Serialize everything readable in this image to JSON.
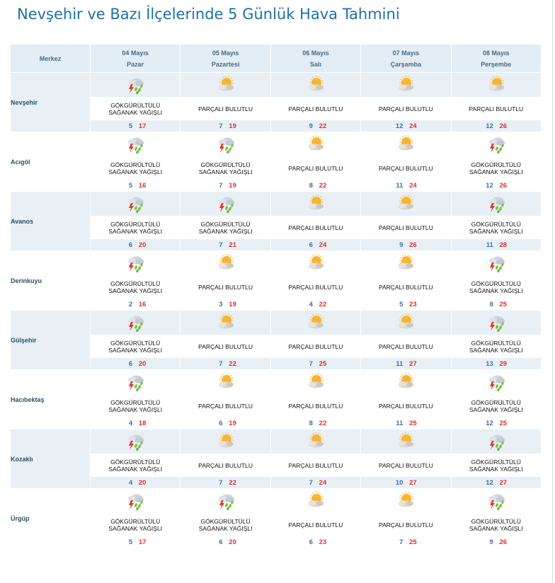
{
  "page_title": "Nevşehir ve Bazı İlçelerinde 5 Günlük Hava Tahmini",
  "header": {
    "merkez": "Merkez",
    "days": [
      {
        "date": "04 Mayıs",
        "weekday": "Pazar"
      },
      {
        "date": "05 Mayıs",
        "weekday": "Pazartesi"
      },
      {
        "date": "06 Mayıs",
        "weekday": "Salı"
      },
      {
        "date": "07 Mayıs",
        "weekday": "Çarşamba"
      },
      {
        "date": "08 Mayıs",
        "weekday": "Perşembe"
      }
    ]
  },
  "conditions": {
    "storm": {
      "line1": "GÖKGÜRÜLTÜLÜ",
      "line2": "SAĞANAK YAĞIŞLI",
      "icon": "thunderstorm-rain-icon"
    },
    "partly": {
      "line1": "PARÇALI BULUTLU",
      "line2": "",
      "icon": "partly-cloudy-icon"
    }
  },
  "colors": {
    "min_temp": "#3b6fb0",
    "max_temp": "#d8322e",
    "title": "#1f6fa8",
    "header_bg": "#e3edf5",
    "row_shade": "#e8f0f6"
  },
  "cities": [
    {
      "name": "Nevşehir",
      "days": [
        {
          "cond": "storm",
          "min": "5",
          "max": "17"
        },
        {
          "cond": "partly",
          "min": "7",
          "max": "19"
        },
        {
          "cond": "partly",
          "min": "9",
          "max": "22"
        },
        {
          "cond": "partly",
          "min": "12",
          "max": "24"
        },
        {
          "cond": "partly",
          "min": "12",
          "max": "26"
        }
      ]
    },
    {
      "name": "Acıgöl",
      "days": [
        {
          "cond": "storm",
          "min": "5",
          "max": "16"
        },
        {
          "cond": "storm",
          "min": "7",
          "max": "19"
        },
        {
          "cond": "partly",
          "min": "8",
          "max": "22"
        },
        {
          "cond": "partly",
          "min": "11",
          "max": "24"
        },
        {
          "cond": "storm",
          "min": "12",
          "max": "26"
        }
      ]
    },
    {
      "name": "Avanos",
      "days": [
        {
          "cond": "storm",
          "min": "6",
          "max": "20"
        },
        {
          "cond": "storm",
          "min": "7",
          "max": "21"
        },
        {
          "cond": "partly",
          "min": "6",
          "max": "24"
        },
        {
          "cond": "partly",
          "min": "9",
          "max": "26"
        },
        {
          "cond": "storm",
          "min": "11",
          "max": "28"
        }
      ]
    },
    {
      "name": "Derinkuyu",
      "days": [
        {
          "cond": "storm",
          "min": "2",
          "max": "16"
        },
        {
          "cond": "partly",
          "min": "3",
          "max": "19"
        },
        {
          "cond": "partly",
          "min": "4",
          "max": "22"
        },
        {
          "cond": "partly",
          "min": "5",
          "max": "23"
        },
        {
          "cond": "storm",
          "min": "8",
          "max": "25"
        }
      ]
    },
    {
      "name": "Gülşehir",
      "days": [
        {
          "cond": "storm",
          "min": "6",
          "max": "20"
        },
        {
          "cond": "partly",
          "min": "7",
          "max": "22"
        },
        {
          "cond": "partly",
          "min": "7",
          "max": "25"
        },
        {
          "cond": "partly",
          "min": "11",
          "max": "27"
        },
        {
          "cond": "storm",
          "min": "13",
          "max": "29"
        }
      ]
    },
    {
      "name": "Hacıbektaş",
      "days": [
        {
          "cond": "storm",
          "min": "4",
          "max": "18"
        },
        {
          "cond": "partly",
          "min": "6",
          "max": "19"
        },
        {
          "cond": "partly",
          "min": "8",
          "max": "22"
        },
        {
          "cond": "partly",
          "min": "11",
          "max": "25"
        },
        {
          "cond": "storm",
          "min": "12",
          "max": "25"
        }
      ]
    },
    {
      "name": "Kozaklı",
      "days": [
        {
          "cond": "storm",
          "min": "4",
          "max": "20"
        },
        {
          "cond": "partly",
          "min": "7",
          "max": "22"
        },
        {
          "cond": "partly",
          "min": "7",
          "max": "24"
        },
        {
          "cond": "partly",
          "min": "10",
          "max": "27"
        },
        {
          "cond": "storm",
          "min": "12",
          "max": "27"
        }
      ]
    },
    {
      "name": "Ürgüp",
      "days": [
        {
          "cond": "storm",
          "min": "5",
          "max": "17"
        },
        {
          "cond": "storm",
          "min": "6",
          "max": "20"
        },
        {
          "cond": "partly",
          "min": "6",
          "max": "23"
        },
        {
          "cond": "partly",
          "min": "7",
          "max": "25"
        },
        {
          "cond": "storm",
          "min": "9",
          "max": "26"
        }
      ]
    }
  ]
}
